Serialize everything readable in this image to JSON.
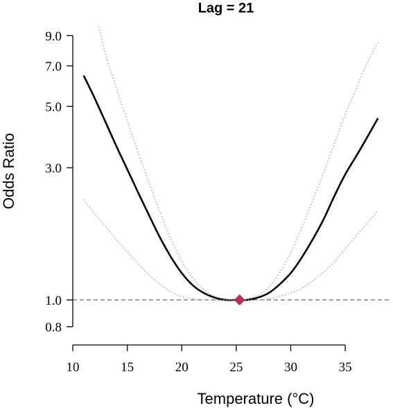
{
  "chart_data": {
    "type": "line",
    "title": "Lag = 21",
    "xlabel": "Temperature (°C)",
    "ylabel": "Odds Ratio",
    "xlim": [
      10,
      39
    ],
    "ylim": [
      0.72,
      10.3
    ],
    "y_scale": "log",
    "x_ticks": [
      10,
      15,
      20,
      25,
      30,
      35
    ],
    "x_tick_labels": [
      "10",
      "15",
      "20",
      "25",
      "30",
      "35"
    ],
    "y_ticks": [
      0.8,
      1.0,
      3.0,
      5.0,
      7.0,
      9.0
    ],
    "y_tick_labels": [
      "0.8",
      "1.0",
      "3.0",
      "5.0",
      "7.0",
      "9.0"
    ],
    "reference_line": {
      "y": 1.0,
      "style": "dashed",
      "color": "#555555"
    },
    "minimum_point": {
      "x": 25.3,
      "y": 1.0,
      "color": "#b5315a",
      "marker": "diamond"
    },
    "grid": false,
    "legend": "none",
    "series": [
      {
        "role": "estimate",
        "style": "solid",
        "color": "#000000",
        "x": [
          11,
          12,
          13,
          14,
          15,
          16,
          17,
          18,
          19,
          20,
          21,
          22,
          23,
          24,
          25,
          25.3,
          26,
          27,
          28,
          29,
          30,
          31,
          32,
          33,
          34,
          35,
          36,
          37,
          38
        ],
        "y": [
          6.46,
          5.36,
          4.39,
          3.59,
          2.96,
          2.44,
          2.02,
          1.68,
          1.43,
          1.25,
          1.13,
          1.06,
          1.02,
          1.0,
          1.0,
          1.0,
          1.0,
          1.02,
          1.06,
          1.14,
          1.25,
          1.42,
          1.65,
          1.95,
          2.37,
          2.84,
          3.3,
          3.86,
          4.53
        ]
      },
      {
        "role": "upper-ci",
        "style": "dotted",
        "color": "#999999",
        "x": [
          12.4,
          13,
          14,
          15,
          16,
          17,
          18,
          19,
          20,
          21,
          22,
          23,
          24,
          25,
          26,
          27,
          28,
          29,
          30,
          31,
          32,
          33,
          34,
          35,
          36,
          37,
          38
        ],
        "y": [
          9.7,
          7.7,
          5.82,
          4.43,
          3.41,
          2.65,
          2.07,
          1.66,
          1.38,
          1.2,
          1.09,
          1.03,
          1.01,
          1.0,
          1.01,
          1.04,
          1.11,
          1.26,
          1.48,
          1.82,
          2.28,
          2.87,
          3.67,
          4.66,
          5.78,
          7.17,
          8.5
        ]
      },
      {
        "role": "lower-ci",
        "style": "dotted",
        "color": "#999999",
        "x": [
          11,
          12,
          13,
          14,
          15,
          16,
          17,
          18,
          19,
          20,
          21,
          22,
          23,
          24,
          25,
          26,
          27,
          28,
          29,
          30,
          31,
          32,
          33,
          34,
          35,
          36,
          37,
          38
        ],
        "y": [
          2.3,
          2.05,
          1.84,
          1.65,
          1.49,
          1.35,
          1.23,
          1.14,
          1.07,
          1.03,
          1.01,
          1.0,
          1.0,
          1.0,
          1.0,
          1.0,
          1.0,
          1.01,
          1.03,
          1.06,
          1.1,
          1.17,
          1.26,
          1.37,
          1.53,
          1.7,
          1.89,
          2.1
        ]
      }
    ]
  }
}
